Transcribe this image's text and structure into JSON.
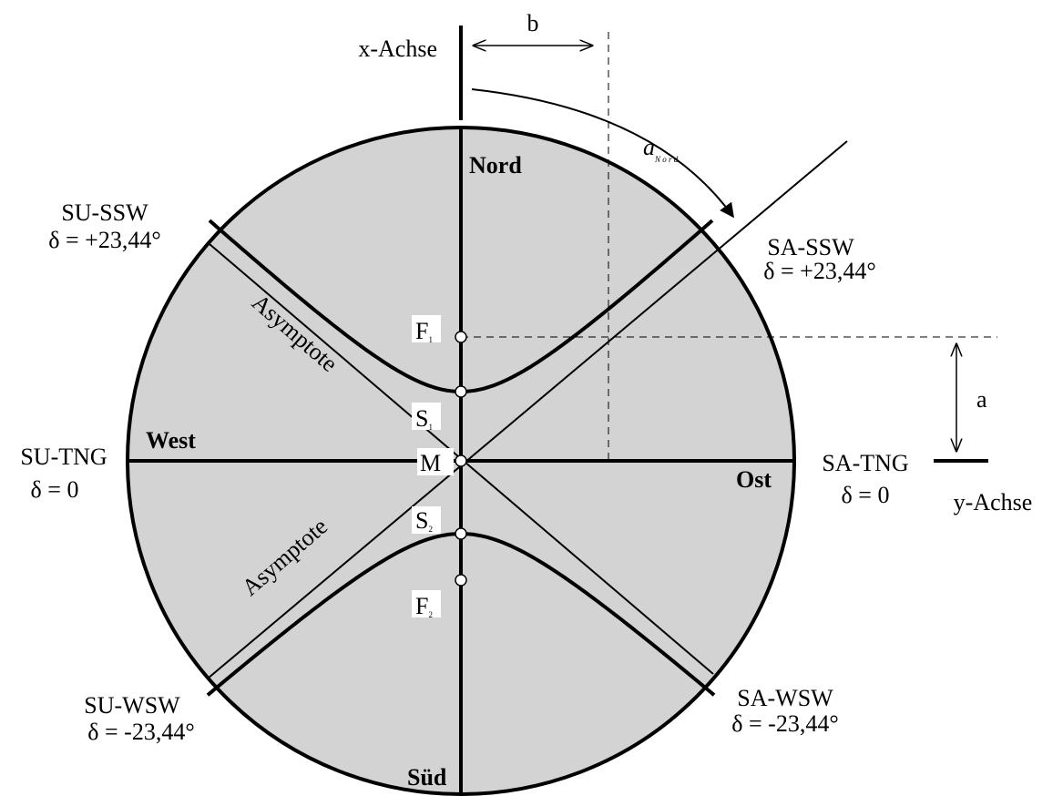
{
  "labels": {
    "x_axis": "x-Achse",
    "b": "b",
    "a_nord": {
      "letter": "a",
      "sub": "N o r d"
    },
    "nord": "Nord",
    "west": "West",
    "ost": "Ost",
    "sued": "Süd",
    "su_ssw": {
      "name": "SU-SSW",
      "delta": "δ = +23,44°"
    },
    "sa_ssw": {
      "name": "SA-SSW",
      "delta": "δ = +23,44°"
    },
    "su_tng": {
      "name": "SU-TNG",
      "delta": "δ = 0"
    },
    "sa_tng": {
      "name": "SA-TNG",
      "delta": "δ = 0"
    },
    "su_wsw": {
      "name": "SU-WSW",
      "delta": "δ = -23,44°"
    },
    "sa_wsw": {
      "name": "SA-WSW",
      "delta": "δ = -23,44°"
    },
    "f1": {
      "letter": "F",
      "sub": "1"
    },
    "f2": {
      "letter": "F",
      "sub": "2"
    },
    "s1": {
      "letter": "S",
      "sub": "1"
    },
    "s2": {
      "letter": "S",
      "sub": "2"
    },
    "m": "M",
    "a": "a",
    "y_axis": "y-Achse",
    "asymptote_upper": "Asymptote",
    "asymptote_lower": "Asymptote"
  }
}
